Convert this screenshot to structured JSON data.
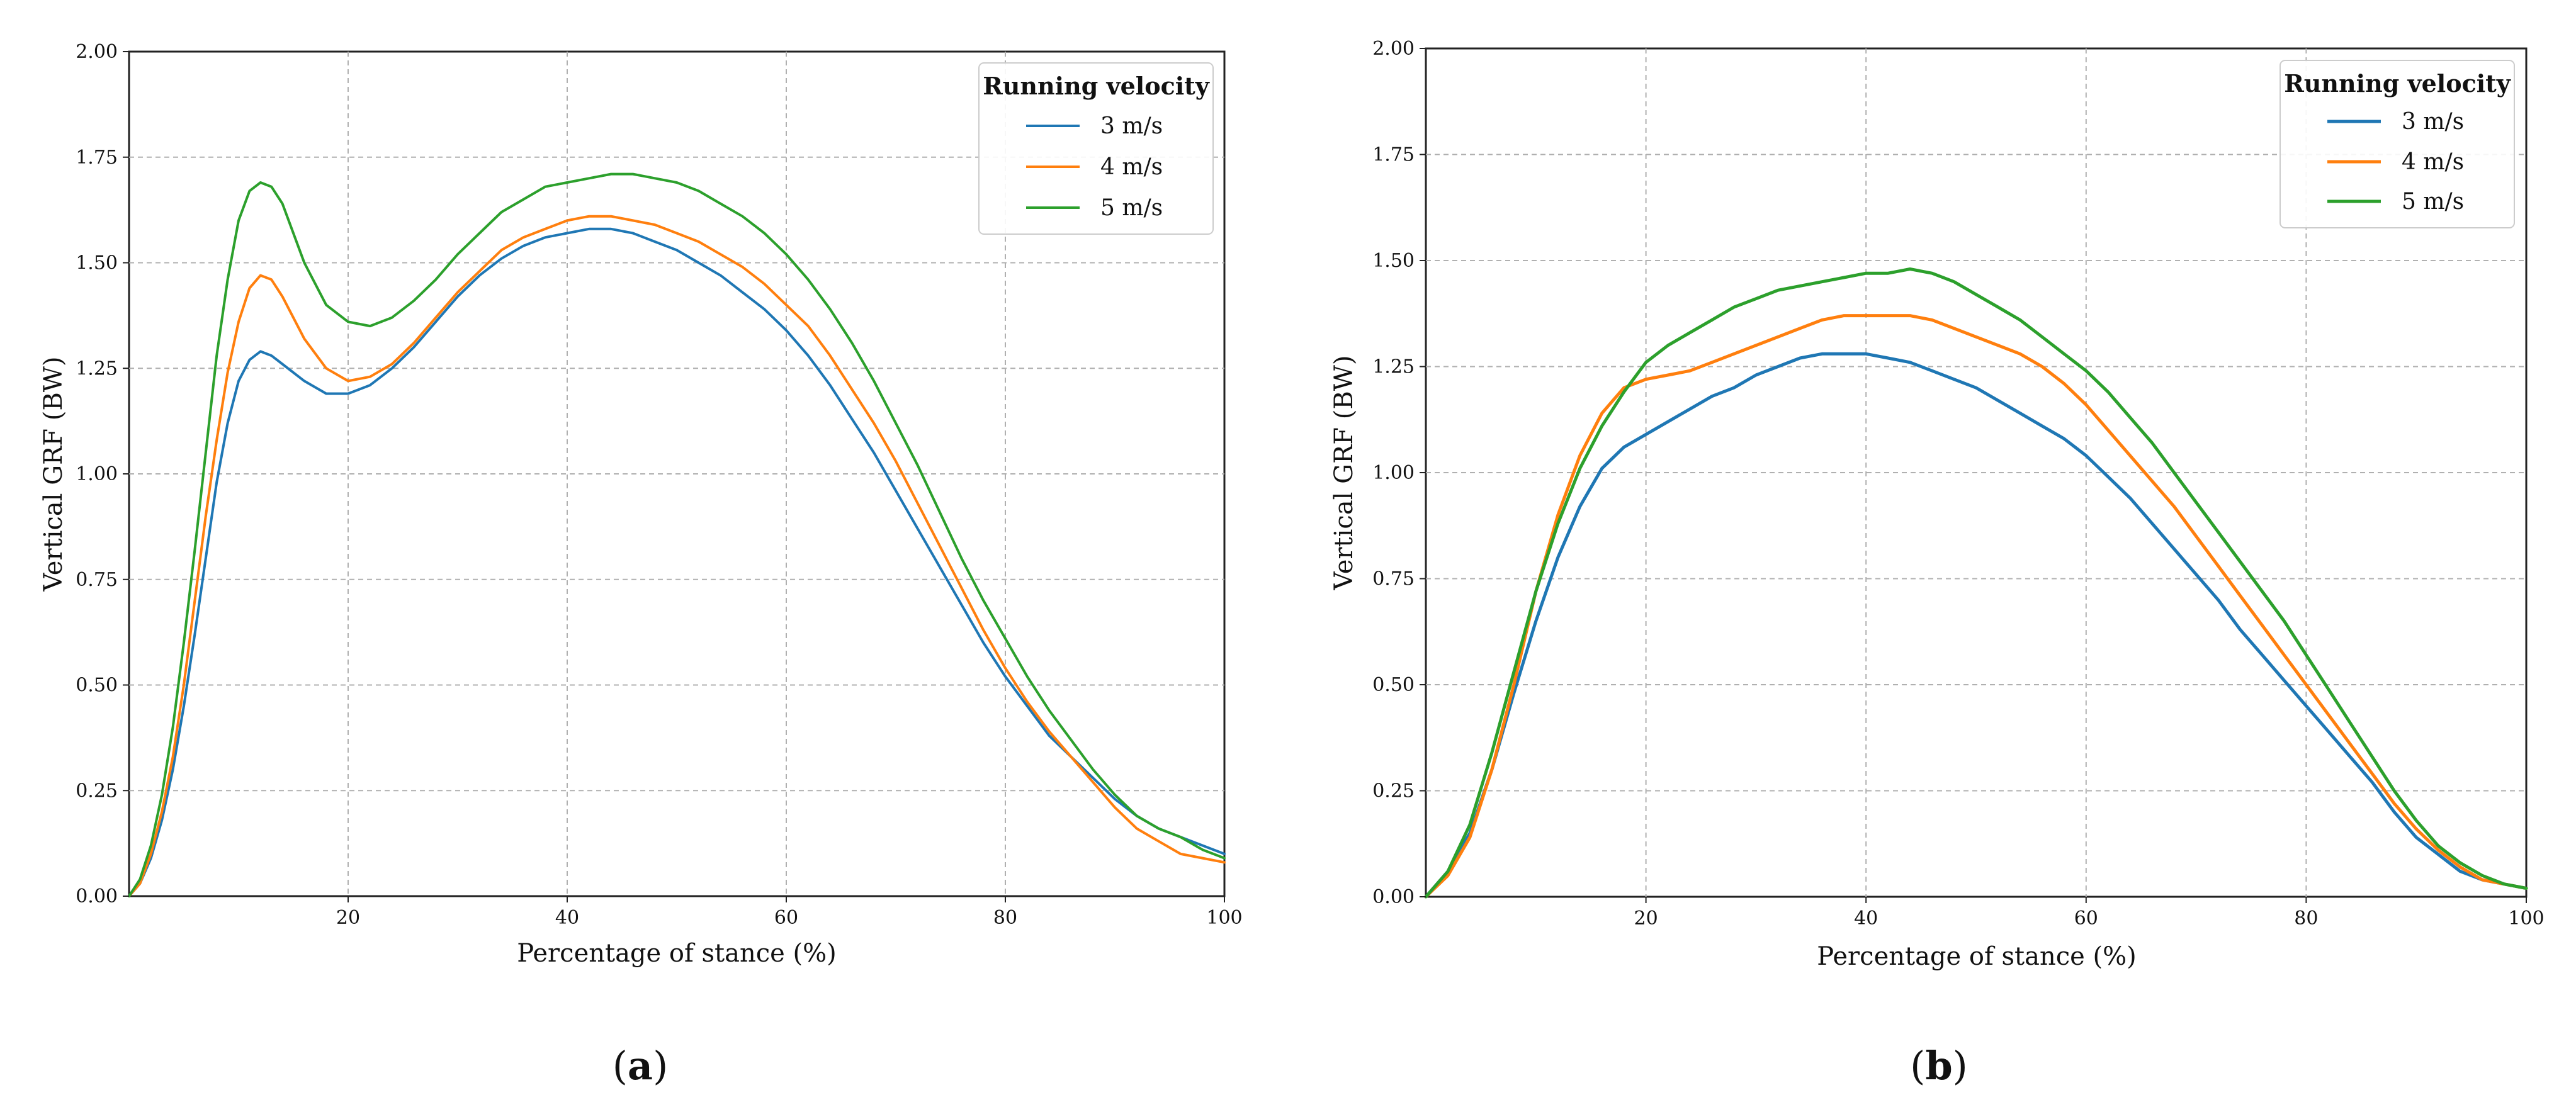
{
  "chart_data": [
    {
      "type": "line",
      "panel_label": "a",
      "title": "",
      "xlabel": "Percentage of stance (%)",
      "ylabel": "Vertical GRF (BW)",
      "xlim": [
        0,
        100
      ],
      "ylim": [
        0.0,
        2.0
      ],
      "xticks": [
        20,
        40,
        60,
        80,
        100
      ],
      "xtick_labels": [
        "20",
        "40",
        "60",
        "80",
        "100"
      ],
      "yticks": [
        0.0,
        0.25,
        0.5,
        0.75,
        1.0,
        1.25,
        1.5,
        1.75,
        2.0
      ],
      "ytick_labels": [
        "0.00",
        "0.25",
        "0.50",
        "0.75",
        "1.00",
        "1.25",
        "1.50",
        "1.75",
        "2.00"
      ],
      "grid": true,
      "legend": {
        "title": "Running velocity",
        "position": "top-right"
      },
      "series": [
        {
          "name": "3 m/s",
          "color": "#1f77b4",
          "x": [
            0,
            1,
            2,
            3,
            4,
            5,
            6,
            7,
            8,
            9,
            10,
            11,
            12,
            13,
            14,
            16,
            18,
            20,
            22,
            24,
            26,
            28,
            30,
            32,
            34,
            36,
            38,
            40,
            42,
            44,
            46,
            48,
            50,
            52,
            54,
            56,
            58,
            60,
            62,
            64,
            66,
            68,
            70,
            72,
            74,
            76,
            78,
            80,
            82,
            84,
            86,
            88,
            90,
            92,
            94,
            96,
            98,
            100
          ],
          "values": [
            0.0,
            0.03,
            0.09,
            0.18,
            0.3,
            0.45,
            0.62,
            0.8,
            0.98,
            1.12,
            1.22,
            1.27,
            1.29,
            1.28,
            1.26,
            1.22,
            1.19,
            1.19,
            1.21,
            1.25,
            1.3,
            1.36,
            1.42,
            1.47,
            1.51,
            1.54,
            1.56,
            1.57,
            1.58,
            1.58,
            1.57,
            1.55,
            1.53,
            1.5,
            1.47,
            1.43,
            1.39,
            1.34,
            1.28,
            1.21,
            1.13,
            1.05,
            0.96,
            0.87,
            0.78,
            0.69,
            0.6,
            0.52,
            0.45,
            0.38,
            0.33,
            0.28,
            0.23,
            0.19,
            0.16,
            0.14,
            0.12,
            0.1
          ]
        },
        {
          "name": "4 m/s",
          "color": "#ff7f0e",
          "x": [
            0,
            1,
            2,
            3,
            4,
            5,
            6,
            7,
            8,
            9,
            10,
            11,
            12,
            13,
            14,
            16,
            18,
            20,
            22,
            24,
            26,
            28,
            30,
            32,
            34,
            36,
            38,
            40,
            42,
            44,
            46,
            48,
            50,
            52,
            54,
            56,
            58,
            60,
            62,
            64,
            66,
            68,
            70,
            72,
            74,
            76,
            78,
            80,
            82,
            84,
            86,
            88,
            90,
            92,
            94,
            96,
            98,
            100
          ],
          "values": [
            0.0,
            0.03,
            0.1,
            0.2,
            0.33,
            0.5,
            0.7,
            0.9,
            1.08,
            1.24,
            1.36,
            1.44,
            1.47,
            1.46,
            1.42,
            1.32,
            1.25,
            1.22,
            1.23,
            1.26,
            1.31,
            1.37,
            1.43,
            1.48,
            1.53,
            1.56,
            1.58,
            1.6,
            1.61,
            1.61,
            1.6,
            1.59,
            1.57,
            1.55,
            1.52,
            1.49,
            1.45,
            1.4,
            1.35,
            1.28,
            1.2,
            1.12,
            1.03,
            0.93,
            0.83,
            0.73,
            0.63,
            0.54,
            0.46,
            0.39,
            0.33,
            0.27,
            0.21,
            0.16,
            0.13,
            0.1,
            0.09,
            0.08
          ]
        },
        {
          "name": "5 m/s",
          "color": "#2ca02c",
          "x": [
            0,
            1,
            2,
            3,
            4,
            5,
            6,
            7,
            8,
            9,
            10,
            11,
            12,
            13,
            14,
            16,
            18,
            20,
            22,
            24,
            26,
            28,
            30,
            32,
            34,
            36,
            38,
            40,
            42,
            44,
            46,
            48,
            50,
            52,
            54,
            56,
            58,
            60,
            62,
            64,
            66,
            68,
            70,
            72,
            74,
            76,
            78,
            80,
            82,
            84,
            86,
            88,
            90,
            92,
            94,
            96,
            98,
            100
          ],
          "values": [
            0.0,
            0.04,
            0.12,
            0.24,
            0.4,
            0.6,
            0.82,
            1.05,
            1.28,
            1.46,
            1.6,
            1.67,
            1.69,
            1.68,
            1.64,
            1.5,
            1.4,
            1.36,
            1.35,
            1.37,
            1.41,
            1.46,
            1.52,
            1.57,
            1.62,
            1.65,
            1.68,
            1.69,
            1.7,
            1.71,
            1.71,
            1.7,
            1.69,
            1.67,
            1.64,
            1.61,
            1.57,
            1.52,
            1.46,
            1.39,
            1.31,
            1.22,
            1.12,
            1.02,
            0.91,
            0.8,
            0.7,
            0.61,
            0.52,
            0.44,
            0.37,
            0.3,
            0.24,
            0.19,
            0.16,
            0.14,
            0.11,
            0.09
          ]
        }
      ]
    },
    {
      "type": "line",
      "panel_label": "b",
      "title": "",
      "xlabel": "Percentage of stance (%)",
      "ylabel": "Vertical GRF (BW)",
      "xlim": [
        0,
        100
      ],
      "ylim": [
        0.0,
        2.0
      ],
      "xticks": [
        20,
        40,
        60,
        80,
        100
      ],
      "xtick_labels": [
        "20",
        "40",
        "60",
        "80",
        "100"
      ],
      "yticks": [
        0.0,
        0.25,
        0.5,
        0.75,
        1.0,
        1.25,
        1.5,
        1.75,
        2.0
      ],
      "ytick_labels": [
        "0.00",
        "0.25",
        "0.50",
        "0.75",
        "1.00",
        "1.25",
        "1.50",
        "1.75",
        "2.00"
      ],
      "grid": true,
      "legend": {
        "title": "Running velocity",
        "position": "top-right"
      },
      "series": [
        {
          "name": "3 m/s",
          "color": "#1f77b4",
          "x": [
            0,
            2,
            4,
            6,
            8,
            10,
            12,
            14,
            16,
            18,
            20,
            22,
            24,
            26,
            28,
            30,
            32,
            34,
            36,
            38,
            40,
            42,
            44,
            46,
            48,
            50,
            52,
            54,
            56,
            58,
            60,
            62,
            64,
            66,
            68,
            70,
            72,
            74,
            76,
            78,
            80,
            82,
            84,
            86,
            88,
            90,
            92,
            94,
            96,
            98,
            100
          ],
          "values": [
            0.0,
            0.06,
            0.15,
            0.3,
            0.48,
            0.65,
            0.8,
            0.92,
            1.01,
            1.06,
            1.09,
            1.12,
            1.15,
            1.18,
            1.2,
            1.23,
            1.25,
            1.27,
            1.28,
            1.28,
            1.28,
            1.27,
            1.26,
            1.24,
            1.22,
            1.2,
            1.17,
            1.14,
            1.11,
            1.08,
            1.04,
            0.99,
            0.94,
            0.88,
            0.82,
            0.76,
            0.7,
            0.63,
            0.57,
            0.51,
            0.45,
            0.39,
            0.33,
            0.27,
            0.2,
            0.14,
            0.1,
            0.06,
            0.04,
            0.03,
            0.02
          ]
        },
        {
          "name": "4 m/s",
          "color": "#ff7f0e",
          "x": [
            0,
            2,
            4,
            6,
            8,
            10,
            12,
            14,
            16,
            18,
            20,
            22,
            24,
            26,
            28,
            30,
            32,
            34,
            36,
            38,
            40,
            42,
            44,
            46,
            48,
            50,
            52,
            54,
            56,
            58,
            60,
            62,
            64,
            66,
            68,
            70,
            72,
            74,
            76,
            78,
            80,
            82,
            84,
            86,
            88,
            90,
            92,
            94,
            96,
            98,
            100
          ],
          "values": [
            0.0,
            0.05,
            0.14,
            0.3,
            0.5,
            0.72,
            0.9,
            1.04,
            1.14,
            1.2,
            1.22,
            1.23,
            1.24,
            1.26,
            1.28,
            1.3,
            1.32,
            1.34,
            1.36,
            1.37,
            1.37,
            1.37,
            1.37,
            1.36,
            1.34,
            1.32,
            1.3,
            1.28,
            1.25,
            1.21,
            1.16,
            1.1,
            1.04,
            0.98,
            0.92,
            0.85,
            0.78,
            0.71,
            0.64,
            0.57,
            0.5,
            0.43,
            0.36,
            0.29,
            0.22,
            0.16,
            0.11,
            0.07,
            0.04,
            0.03,
            0.02
          ]
        },
        {
          "name": "5 m/s",
          "color": "#2ca02c",
          "x": [
            0,
            2,
            4,
            6,
            8,
            10,
            12,
            14,
            16,
            18,
            20,
            22,
            24,
            26,
            28,
            30,
            32,
            34,
            36,
            38,
            40,
            42,
            44,
            46,
            48,
            50,
            52,
            54,
            56,
            58,
            60,
            62,
            64,
            66,
            68,
            70,
            72,
            74,
            76,
            78,
            80,
            82,
            84,
            86,
            88,
            90,
            92,
            94,
            96,
            98,
            100
          ],
          "values": [
            0.0,
            0.06,
            0.17,
            0.34,
            0.53,
            0.72,
            0.88,
            1.01,
            1.11,
            1.19,
            1.26,
            1.3,
            1.33,
            1.36,
            1.39,
            1.41,
            1.43,
            1.44,
            1.45,
            1.46,
            1.47,
            1.47,
            1.48,
            1.47,
            1.45,
            1.42,
            1.39,
            1.36,
            1.32,
            1.28,
            1.24,
            1.19,
            1.13,
            1.07,
            1.0,
            0.93,
            0.86,
            0.79,
            0.72,
            0.65,
            0.57,
            0.49,
            0.41,
            0.33,
            0.25,
            0.18,
            0.12,
            0.08,
            0.05,
            0.03,
            0.02
          ]
        }
      ]
    }
  ]
}
